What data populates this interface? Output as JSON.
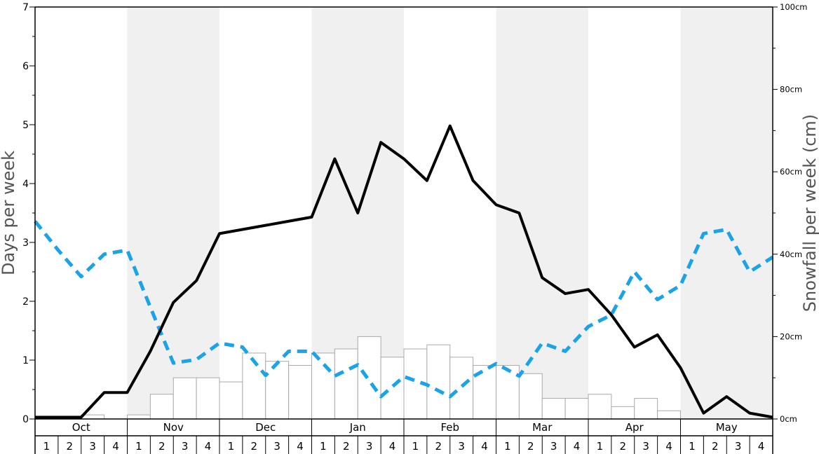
{
  "chart_data": {
    "type": "bar",
    "left_axis": {
      "label": "Days per week",
      "ylim": [
        0,
        7
      ],
      "ticks": [
        "0",
        "1",
        "2",
        "3",
        "4",
        "5",
        "6",
        "7"
      ]
    },
    "right_axis": {
      "label": "Snowfall per week (cm)",
      "ylim": [
        0,
        100
      ],
      "ticks": [
        "0cm",
        "20cm",
        "40cm",
        "60cm",
        "80cm",
        "100cm"
      ]
    },
    "months": [
      "Oct",
      "Nov",
      "Dec",
      "Jan",
      "Feb",
      "Mar",
      "Apr",
      "May"
    ],
    "week_labels": [
      "1",
      "2",
      "3",
      "4"
    ],
    "snowfall_bars": [
      0,
      0,
      1,
      0,
      1,
      6,
      10,
      10,
      9,
      16,
      14,
      13,
      16,
      17,
      20,
      15,
      17,
      18,
      15,
      13,
      13,
      11,
      5,
      5,
      6,
      3,
      5,
      2,
      0,
      0,
      0,
      0
    ],
    "solid_line": [
      0.03,
      0.03,
      0.03,
      0.45,
      0.45,
      1.15,
      1.98,
      2.35,
      3.15,
      3.22,
      3.29,
      3.36,
      3.43,
      4.42,
      3.5,
      4.7,
      4.42,
      4.05,
      4.98,
      4.05,
      3.64,
      3.5,
      2.4,
      2.13,
      2.2,
      1.77,
      1.22,
      1.43,
      0.87,
      0.1,
      0.38,
      0.1,
      0.03
    ],
    "dashed_line": [
      3.36,
      2.87,
      2.42,
      2.8,
      2.87,
      1.9,
      0.95,
      1.01,
      1.29,
      1.22,
      0.74,
      1.15,
      1.15,
      0.73,
      0.92,
      0.38,
      0.72,
      0.58,
      0.38,
      0.72,
      0.94,
      0.73,
      1.29,
      1.15,
      1.57,
      1.77,
      2.5,
      2.03,
      2.27,
      3.15,
      3.22,
      2.5,
      2.75
    ],
    "colors": {
      "band": "#f0f0f0",
      "bar_fill": "#ffffff",
      "bar_stroke": "#aaaaaa",
      "solid_line": "#000000",
      "dashed_line": "#1aa3e8",
      "axis": "#000000",
      "axis_title": "#555555"
    }
  }
}
